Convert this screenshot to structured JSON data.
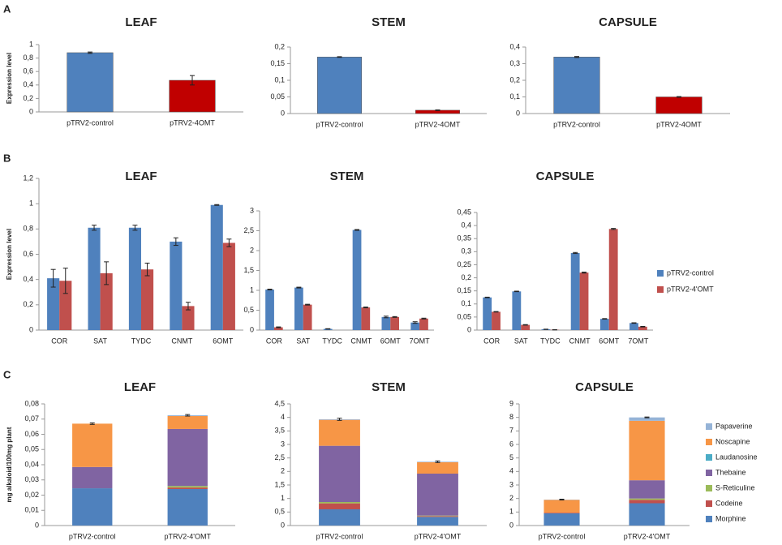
{
  "chart_data": [
    {
      "type": "bar",
      "panel": "A",
      "title": "LEAF",
      "y_label": "Expression level",
      "categories": [
        "pTRV2-control",
        "pTRV2-4OMT"
      ],
      "values": [
        0.88,
        0.47
      ],
      "errors": [
        0.01,
        0.07
      ],
      "colors": [
        "#4f81bd",
        "#c00000"
      ],
      "ylim": [
        0,
        1
      ],
      "yticks": [
        0,
        {
          "value": 0.2,
          "label": "0,2"
        },
        {
          "value": 0.4,
          "label": "0,4"
        },
        {
          "value": 0.6,
          "label": "0,6"
        },
        {
          "value": 0.8,
          "label": "0,8"
        },
        1
      ]
    },
    {
      "type": "bar",
      "title": "STEM",
      "categories": [
        "pTRV2-control",
        "pTRV2-4OMT"
      ],
      "values": [
        0.17,
        0.01
      ],
      "errors": [
        0.001,
        0.001
      ],
      "colors": [
        "#4f81bd",
        "#c00000"
      ],
      "ylim": [
        0,
        0.2
      ],
      "yticks": [
        0,
        {
          "value": 0.05,
          "label": "0,05"
        },
        {
          "value": 0.1,
          "label": "0,1"
        },
        {
          "value": 0.15,
          "label": "0,15"
        },
        {
          "value": 0.2,
          "label": "0,2"
        }
      ]
    },
    {
      "type": "bar",
      "title": "CAPSULE",
      "categories": [
        "pTRV2-control",
        "pTRV2-4OMT"
      ],
      "values": [
        0.34,
        0.1
      ],
      "errors": [
        0.003,
        0.002
      ],
      "colors": [
        "#4f81bd",
        "#c00000"
      ],
      "ylim": [
        0,
        0.4
      ],
      "yticks": [
        0,
        {
          "value": 0.1,
          "label": "0,1"
        },
        {
          "value": 0.2,
          "label": "0,2"
        },
        {
          "value": 0.3,
          "label": "0,3"
        },
        {
          "value": 0.4,
          "label": "0,4"
        }
      ]
    },
    {
      "type": "bar",
      "panel": "B",
      "title": "LEAF",
      "y_label": "Expression level",
      "categories": [
        "COR",
        "SAT",
        "TYDC",
        "CNMT",
        "6OMT"
      ],
      "series": [
        {
          "color": "#4f81bd",
          "values": [
            0.41,
            0.81,
            0.81,
            0.7,
            0.99
          ],
          "errors": [
            0.07,
            0.02,
            0.02,
            0.03,
            0.003
          ]
        },
        {
          "color": "#c0504d",
          "values": [
            0.39,
            0.45,
            0.48,
            0.19,
            0.69
          ],
          "errors": [
            0.1,
            0.09,
            0.05,
            0.03,
            0.03
          ]
        }
      ],
      "ylim": [
        0,
        1.2
      ],
      "yticks": [
        0,
        {
          "value": 0.2,
          "label": "0,2"
        },
        {
          "value": 0.4,
          "label": "0,4"
        },
        {
          "value": 0.6,
          "label": "0,6"
        },
        {
          "value": 0.8,
          "label": "0,8"
        },
        1,
        {
          "value": 1.2,
          "label": "1,2"
        }
      ]
    },
    {
      "type": "bar",
      "title": "STEM",
      "categories": [
        "COR",
        "SAT",
        "TYDC",
        "CNMT",
        "6OMT",
        "7OMT"
      ],
      "series": [
        {
          "color": "#4f81bd",
          "values": [
            1.02,
            1.07,
            0.03,
            2.52,
            0.33,
            0.19
          ],
          "errors": [
            0.01,
            0.01,
            0.005,
            0.01,
            0.02,
            0.02
          ]
        },
        {
          "color": "#c0504d",
          "values": [
            0.07,
            0.64,
            0,
            0.57,
            0.33,
            0.29
          ],
          "errors": [
            0.01,
            0.01,
            0,
            0.01,
            0.01,
            0.01
          ]
        }
      ],
      "ylim": [
        0,
        3
      ],
      "yticks": [
        0,
        {
          "value": 0.5,
          "label": "0,5"
        },
        1,
        {
          "value": 1.5,
          "label": "1,5"
        },
        2,
        {
          "value": 2.5,
          "label": "2,5"
        },
        3
      ]
    },
    {
      "type": "bar",
      "title": "CAPSULE",
      "legend": "right",
      "categories": [
        "COR",
        "SAT",
        "TYDC",
        "CNMT",
        "6OMT",
        "7OMT"
      ],
      "series": [
        {
          "name": "pTRV2-control",
          "color": "#4f81bd",
          "values": [
            0.125,
            0.148,
            0.003,
            0.295,
            0.043,
            0.027
          ],
          "errors": [
            0.001,
            0.001,
            0.0005,
            0.002,
            0.001,
            0.001
          ]
        },
        {
          "name": "pTRV2-4'OMT",
          "color": "#c0504d",
          "values": [
            0.07,
            0.02,
            0.001,
            0.22,
            0.387,
            0.013
          ],
          "errors": [
            0.001,
            0.001,
            0.0005,
            0.002,
            0.002,
            0.001
          ]
        }
      ],
      "ylim": [
        0,
        0.45
      ],
      "yticks": [
        0,
        {
          "value": 0.05,
          "label": "0,05"
        },
        {
          "value": 0.1,
          "label": "0,1"
        },
        {
          "value": 0.15,
          "label": "0,15"
        },
        {
          "value": 0.2,
          "label": "0,2"
        },
        {
          "value": 0.25,
          "label": "0,25"
        },
        {
          "value": 0.3,
          "label": "0,3"
        },
        {
          "value": 0.35,
          "label": "0,35"
        },
        {
          "value": 0.4,
          "label": "0,4"
        },
        {
          "value": 0.45,
          "label": "0,45"
        }
      ]
    },
    {
      "type": "stacked_bar",
      "panel": "C",
      "title": "LEAF",
      "y_label": "mg alkaloid/100mg plant",
      "categories": [
        "pTRV2-control",
        "pTRV2-4'OMT"
      ],
      "series": [
        {
          "color": "#4f81bd",
          "values": [
            0.0245,
            0.024
          ]
        },
        {
          "color": "#c0504d",
          "values": [
            0,
            0.001
          ]
        },
        {
          "color": "#9bbb59",
          "values": [
            0,
            0.001
          ]
        },
        {
          "color": "#8064a2",
          "values": [
            0.014,
            0.0375
          ]
        },
        {
          "color": "#4bacc6",
          "values": [
            0,
            0
          ]
        },
        {
          "color": "#f79646",
          "values": [
            0.0285,
            0.0085
          ]
        },
        {
          "color": "#95b3d7",
          "values": [
            0,
            0.0005
          ]
        }
      ],
      "total_errors": [
        0.0005,
        0.0005
      ],
      "ylim": [
        0,
        0.08
      ],
      "yticks": [
        0,
        {
          "value": 0.01,
          "label": "0,01"
        },
        {
          "value": 0.02,
          "label": "0,02"
        },
        {
          "value": 0.03,
          "label": "0,03"
        },
        {
          "value": 0.04,
          "label": "0,04"
        },
        {
          "value": 0.05,
          "label": "0,05"
        },
        {
          "value": 0.06,
          "label": "0,06"
        },
        {
          "value": 0.07,
          "label": "0,07"
        },
        {
          "value": 0.08,
          "label": "0,08"
        }
      ]
    },
    {
      "type": "stacked_bar",
      "title": "STEM",
      "categories": [
        "pTRV2-control",
        "pTRV2-4'OMT"
      ],
      "series": [
        {
          "color": "#4f81bd",
          "values": [
            0.6,
            0.32
          ]
        },
        {
          "color": "#c0504d",
          "values": [
            0.22,
            0.03
          ]
        },
        {
          "color": "#9bbb59",
          "values": [
            0.05,
            0.02
          ]
        },
        {
          "color": "#8064a2",
          "values": [
            2.08,
            1.55
          ]
        },
        {
          "color": "#4bacc6",
          "values": [
            0,
            0
          ]
        },
        {
          "color": "#f79646",
          "values": [
            0.96,
            0.42
          ]
        },
        {
          "color": "#95b3d7",
          "values": [
            0.02,
            0.02
          ]
        }
      ],
      "total_errors": [
        0.04,
        0.03
      ],
      "ylim": [
        0,
        4.5
      ],
      "yticks": [
        0,
        {
          "value": 0.5,
          "label": "0,5"
        },
        1,
        {
          "value": 1.5,
          "label": "1,5"
        },
        2,
        {
          "value": 2.5,
          "label": "2,5"
        },
        3,
        {
          "value": 3.5,
          "label": "3,5"
        },
        4,
        {
          "value": 4.5,
          "label": "4,5"
        }
      ]
    },
    {
      "type": "stacked_bar",
      "title": "CAPSULE",
      "legend": "right",
      "categories": [
        "pTRV2-control",
        "pTRV2-4'OMT"
      ],
      "series": [
        {
          "name": "Morphine",
          "color": "#4f81bd",
          "values": [
            0.9,
            1.65
          ]
        },
        {
          "name": "Codeine",
          "color": "#c0504d",
          "values": [
            0.05,
            0.25
          ]
        },
        {
          "name": "S-Reticuline",
          "color": "#9bbb59",
          "values": [
            0,
            0.1
          ]
        },
        {
          "name": "Thebaine",
          "color": "#8064a2",
          "values": [
            0,
            1.35
          ]
        },
        {
          "name": "Laudanosine",
          "color": "#4bacc6",
          "values": [
            0,
            0
          ]
        },
        {
          "name": "Noscapine",
          "color": "#f79646",
          "values": [
            0.95,
            4.4
          ]
        },
        {
          "name": "Papaverine",
          "color": "#95b3d7",
          "values": [
            0.02,
            0.25
          ]
        }
      ],
      "total_errors": [
        0.03,
        0.03
      ],
      "ylim": [
        0,
        9
      ],
      "yticks": [
        0,
        1,
        2,
        3,
        4,
        5,
        6,
        7,
        8,
        9
      ]
    }
  ]
}
